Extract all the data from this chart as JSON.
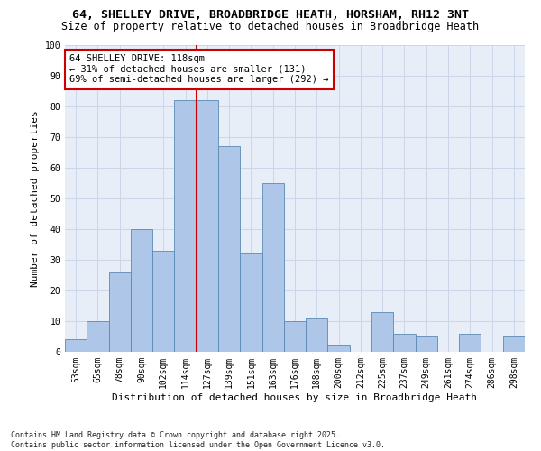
{
  "title1": "64, SHELLEY DRIVE, BROADBRIDGE HEATH, HORSHAM, RH12 3NT",
  "title2": "Size of property relative to detached houses in Broadbridge Heath",
  "xlabel": "Distribution of detached houses by size in Broadbridge Heath",
  "ylabel": "Number of detached properties",
  "categories": [
    "53sqm",
    "65sqm",
    "78sqm",
    "90sqm",
    "102sqm",
    "114sqm",
    "127sqm",
    "139sqm",
    "151sqm",
    "163sqm",
    "176sqm",
    "188sqm",
    "200sqm",
    "212sqm",
    "225sqm",
    "237sqm",
    "249sqm",
    "261sqm",
    "274sqm",
    "286sqm",
    "298sqm"
  ],
  "values": [
    4,
    10,
    26,
    40,
    33,
    82,
    82,
    67,
    32,
    55,
    10,
    11,
    2,
    0,
    13,
    6,
    5,
    0,
    6,
    0,
    5
  ],
  "bar_color": "#aec6e8",
  "bar_edge_color": "#5a8ab5",
  "vline_x_index": 5.5,
  "vline_color": "#cc0000",
  "annotation_text": "64 SHELLEY DRIVE: 118sqm\n← 31% of detached houses are smaller (131)\n69% of semi-detached houses are larger (292) →",
  "annotation_box_color": "#cc0000",
  "annotation_bg_color": "#ffffff",
  "ylim": [
    0,
    100
  ],
  "yticks": [
    0,
    10,
    20,
    30,
    40,
    50,
    60,
    70,
    80,
    90,
    100
  ],
  "grid_color": "#ccd6e8",
  "bg_color": "#e8eef8",
  "footer_text": "Contains HM Land Registry data © Crown copyright and database right 2025.\nContains public sector information licensed under the Open Government Licence v3.0.",
  "title_fontsize": 9.5,
  "subtitle_fontsize": 8.5,
  "axis_label_fontsize": 8,
  "tick_fontsize": 7,
  "annotation_fontsize": 7.5,
  "footer_fontsize": 6
}
